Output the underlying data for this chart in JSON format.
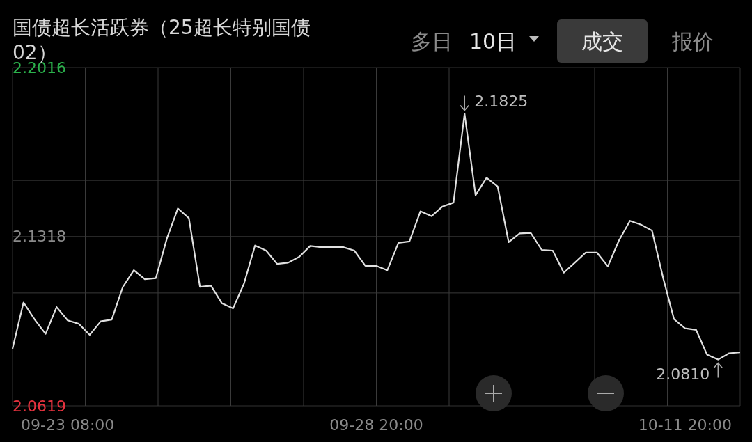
{
  "chart_data": {
    "type": "line",
    "title": "国债超长活跃券（25超长特别国债02）",
    "categories": [
      null,
      null,
      null,
      null,
      null,
      "09-23 08:00",
      null,
      null,
      null,
      null,
      null,
      null,
      null,
      null,
      null,
      null,
      null,
      null,
      null,
      null,
      null,
      null,
      null,
      null,
      null,
      null,
      null,
      null,
      null,
      null,
      null,
      null,
      null,
      "09-28 20:00",
      null,
      null,
      null,
      null,
      null,
      null,
      null,
      null,
      null,
      null,
      null,
      null,
      null,
      null,
      null,
      null,
      null,
      null,
      null,
      null,
      null,
      null,
      null,
      null,
      null,
      null,
      null,
      "10-11 20:00",
      null,
      null,
      null,
      null,
      null
    ],
    "series": [
      {
        "color": "#e0e0e0",
        "values": [
          2.0855,
          2.1046,
          2.0976,
          2.0916,
          2.1027,
          2.0972,
          2.0958,
          2.0912,
          2.0968,
          2.0975,
          2.1109,
          2.1179,
          2.1142,
          2.1146,
          2.131,
          2.1434,
          2.1394,
          2.111,
          2.1115,
          2.1042,
          2.1021,
          2.1124,
          2.1281,
          2.126,
          2.1205,
          2.121,
          2.1234,
          2.1279,
          2.1274,
          2.1274,
          2.1274,
          2.126,
          2.1197,
          2.1197,
          2.1179,
          2.1292,
          2.1298,
          2.1422,
          2.1402,
          2.1442,
          2.1458,
          2.1825,
          2.1489,
          2.1561,
          2.1525,
          2.1295,
          2.1331,
          2.1333,
          2.1263,
          2.126,
          2.1169,
          2.121,
          2.1252,
          2.1252,
          2.1195,
          2.1301,
          2.1383,
          2.1367,
          2.1343,
          2.1149,
          2.0977,
          2.0939,
          2.0933,
          2.083,
          2.081,
          2.0836,
          2.084
        ]
      }
    ],
    "ylim": [
      2.0619,
      2.2016
    ],
    "yticks": [
      2.2016,
      {
        "value": 2.155,
        "label": null
      },
      2.1318,
      {
        "value": 2.1085,
        "label": null
      },
      2.0619
    ],
    "grid": true,
    "annotations": [
      "多日",
      "10日",
      "成交",
      "报价",
      "2.1825",
      "2.0810"
    ]
  }
}
